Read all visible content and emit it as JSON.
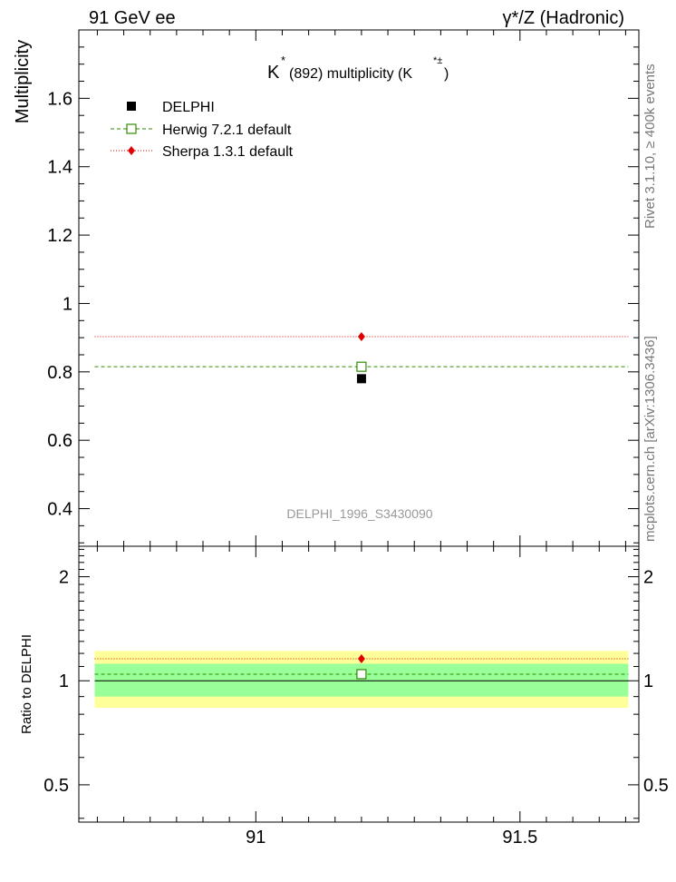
{
  "header": {
    "left": "91 GeV ee",
    "right": "γ*/Z (Hadronic)"
  },
  "side_labels": {
    "rivet": "Rivet 3.1.10, ≥ 400k events",
    "mcplots": "mcplots.cern.ch [arXiv:1306.3436]"
  },
  "chart_data": [
    {
      "type": "scatter",
      "title": {
        "k": "K",
        "star": "*",
        "mid": "(892) multiplicity (K",
        "sup": "*±",
        "close": ")"
      },
      "ylabel": "Multiplicity",
      "xlabel": "",
      "xlim": [
        90.665,
        91.725
      ],
      "ylim": [
        0.29,
        1.8
      ],
      "yticks_major": [
        0.4,
        0.6,
        0.8,
        1.0,
        1.2,
        1.4,
        1.6
      ],
      "ytick_labels": [
        "0.4",
        "0.6",
        "0.8",
        "1",
        "1.2",
        "1.4",
        "1.6"
      ],
      "ytick_minor_step": 0.05,
      "xtick_minor_step": 0.05,
      "watermark": "DELPHI_1996_S3430090",
      "legend_position": "top-left",
      "series": [
        {
          "name": "DELPHI",
          "kind": "data",
          "x": [
            91.2
          ],
          "y": [
            0.78
          ],
          "color": "#000000",
          "marker": "filled-square"
        },
        {
          "name": "Herwig 7.2.1 default",
          "kind": "mc",
          "x": [
            91.2
          ],
          "y": [
            0.815
          ],
          "line_x": [
            90.695,
            91.705
          ],
          "color": "#2e8b00",
          "marker": "open-square",
          "linestyle": "dashed"
        },
        {
          "name": "Sherpa 1.3.1 default",
          "kind": "mc",
          "x": [
            91.2
          ],
          "y": [
            0.903
          ],
          "line_x": [
            90.695,
            91.705
          ],
          "color": "#e00000",
          "marker": "diamond",
          "linestyle": "dotted"
        }
      ]
    },
    {
      "type": "scatter",
      "title": "",
      "ylabel": "Ratio to DELPHI",
      "xlabel": "",
      "log_y": true,
      "xlim": [
        90.665,
        91.725
      ],
      "ylim": [
        0.39,
        2.45
      ],
      "yticks_major": [
        0.5,
        1,
        2
      ],
      "ytick_labels": [
        "0.5",
        "1",
        "2"
      ],
      "ytick_minor": [
        0.4,
        0.6,
        0.7,
        0.8,
        0.9,
        1.1,
        1.2,
        1.3,
        1.4,
        1.5,
        1.6,
        1.7,
        1.8,
        1.9,
        2.1,
        2.2,
        2.3,
        2.4
      ],
      "xticks_major": [
        91.0,
        91.5
      ],
      "xtick_labels": [
        "91",
        "91.5"
      ],
      "bands": [
        {
          "name": "total uncertainty",
          "x": [
            90.695,
            91.705
          ],
          "y_low": 0.835,
          "y_high": 1.22,
          "color": "#ffff99"
        },
        {
          "name": "statistical uncertainty",
          "x": [
            90.695,
            91.705
          ],
          "y_low": 0.9,
          "y_high": 1.12,
          "color": "#99ff99"
        }
      ],
      "series": [
        {
          "name": "Herwig 7.2.1 default",
          "x": [
            91.2
          ],
          "y": [
            1.045
          ],
          "line_x": [
            90.695,
            91.705
          ],
          "color": "#2e8b00",
          "marker": "open-square",
          "linestyle": "dashed"
        },
        {
          "name": "Sherpa 1.3.1 default",
          "x": [
            91.2
          ],
          "y": [
            1.158
          ],
          "line_x": [
            90.695,
            91.705
          ],
          "color": "#e00000",
          "marker": "diamond",
          "linestyle": "dotted"
        }
      ]
    }
  ]
}
